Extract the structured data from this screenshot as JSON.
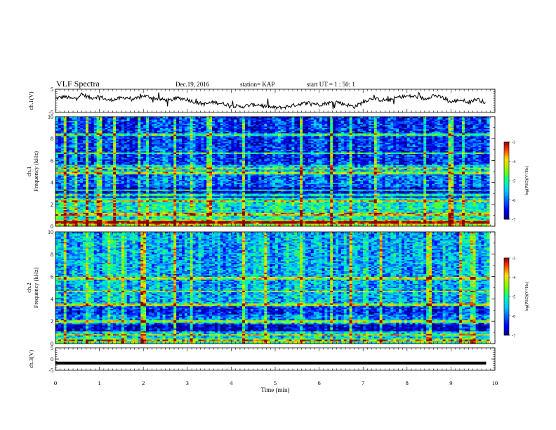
{
  "header": {
    "title": "VLF Spectra",
    "date": "Dec.19, 2016",
    "station": "station= KAP",
    "start_ut": "start UT =  1 : 50: 1"
  },
  "chart_data": [
    {
      "type": "line",
      "id": "ch1_waveform",
      "ylabel": "ch.1(V)",
      "ylim": [
        -5,
        5
      ],
      "yticks": [
        5,
        -5
      ],
      "xlim": [
        0,
        10
      ],
      "x": [
        0,
        0.2,
        0.4,
        0.6,
        0.8,
        1.0,
        1.2,
        1.4,
        1.6,
        1.8,
        2.0,
        2.2,
        2.4,
        2.6,
        2.8,
        3.0,
        3.2,
        3.4,
        3.6,
        3.8,
        4.0,
        4.2,
        4.4,
        4.6,
        4.8,
        5.0,
        5.2,
        5.4,
        5.6,
        5.8,
        6.0,
        6.2,
        6.4,
        6.6,
        6.8,
        7.0,
        7.2,
        7.4,
        7.6,
        7.8,
        8.0,
        8.2,
        8.4,
        8.6,
        8.8,
        9.0,
        9.2,
        9.4,
        9.6,
        9.8
      ],
      "y": [
        1.0,
        1.8,
        0.8,
        2.8,
        1.2,
        2.0,
        0.2,
        0.8,
        1.5,
        0.6,
        2.2,
        1.4,
        0.6,
        0.2,
        1.2,
        0.6,
        -0.8,
        -1.4,
        -0.6,
        -1.2,
        -2.0,
        -2.6,
        -2.0,
        -1.6,
        -2.4,
        -3.0,
        -2.8,
        -2.0,
        -1.2,
        -0.8,
        -1.6,
        -1.0,
        -0.4,
        -1.6,
        -2.6,
        -0.6,
        1.2,
        0.4,
        0.2,
        1.6,
        2.0,
        1.8,
        0.8,
        2.4,
        1.4,
        -0.6,
        0.4,
        -0.4,
        0.8,
        -1.0
      ]
    },
    {
      "type": "heatmap",
      "id": "ch1_spectrogram",
      "ylabel": "ch.1 Frequency (kHz)",
      "ylim": [
        0,
        10
      ],
      "yticks": [
        0,
        2,
        4,
        6,
        8,
        10
      ],
      "xlim": [
        0,
        10
      ],
      "colorbar": {
        "label": "log(PSD)(V²/Hz)",
        "min": -7,
        "max": -3,
        "ticks": [
          -3,
          -4,
          -5,
          -6,
          -7
        ]
      },
      "mean_log_psd_by_band": [
        {
          "f": [
            0.0,
            0.6
          ],
          "level": -4.2
        },
        {
          "f": [
            0.6,
            2.6
          ],
          "level": -5.2
        },
        {
          "f": [
            2.6,
            3.6
          ],
          "level": -6.6
        },
        {
          "f": [
            3.6,
            4.9
          ],
          "level": -6.0
        },
        {
          "f": [
            4.9,
            5.6
          ],
          "level": -5.5
        },
        {
          "f": [
            5.6,
            10.0
          ],
          "level": -6.3
        }
      ],
      "narrowband_lines_kHz": [
        0.35,
        1.1,
        2.3,
        2.9,
        3.3,
        4.9,
        5.3,
        6.7,
        8.4
      ],
      "impulsive_times_min": [
        0.2,
        0.45,
        0.7,
        1.0,
        1.35,
        1.9,
        2.1,
        2.7,
        3.1,
        3.5,
        4.3,
        5.6,
        6.3,
        6.7,
        7.3,
        8.4,
        9.0,
        9.3
      ]
    },
    {
      "type": "heatmap",
      "id": "ch2_spectrogram",
      "ylabel": "ch.2 Frequency (kHz)",
      "ylim": [
        0,
        10
      ],
      "yticks": [
        0,
        2,
        4,
        6,
        8,
        10
      ],
      "xlim": [
        0,
        10
      ],
      "colorbar": {
        "label": "log(PSD)(V²/Hz)",
        "min": -7,
        "max": -3,
        "ticks": [
          -3,
          -4,
          -5,
          -6,
          -7
        ]
      },
      "mean_log_psd_by_band": [
        {
          "f": [
            0.0,
            0.5
          ],
          "level": -4.8
        },
        {
          "f": [
            0.5,
            1.1
          ],
          "level": -5.4
        },
        {
          "f": [
            1.1,
            1.8
          ],
          "level": -6.7
        },
        {
          "f": [
            1.8,
            2.6
          ],
          "level": -5.8
        },
        {
          "f": [
            2.6,
            3.4
          ],
          "level": -6.3
        },
        {
          "f": [
            3.4,
            10.0
          ],
          "level": -5.6
        }
      ],
      "narrowband_lines_kHz": [
        0.3,
        0.8,
        2.0,
        3.5,
        4.7,
        5.9
      ],
      "impulsive_times_min": [
        0.2,
        0.7,
        1.2,
        1.55,
        2.0,
        2.7,
        3.1,
        4.3,
        4.8,
        5.6,
        6.3,
        6.7,
        7.4,
        8.5,
        9.2,
        9.5
      ]
    },
    {
      "type": "line",
      "id": "ch3_waveform",
      "ylabel": "ch.3(V)",
      "ylim": [
        -5,
        5
      ],
      "yticks": [
        5,
        0,
        -5
      ],
      "xlim": [
        0,
        10
      ],
      "x": [
        0,
        9.8
      ],
      "y": [
        -1.8,
        -1.8
      ]
    }
  ],
  "x_axis": {
    "label": "Time (min)",
    "ticks": [
      0,
      1,
      2,
      3,
      4,
      5,
      6,
      7,
      8,
      9,
      10
    ]
  }
}
